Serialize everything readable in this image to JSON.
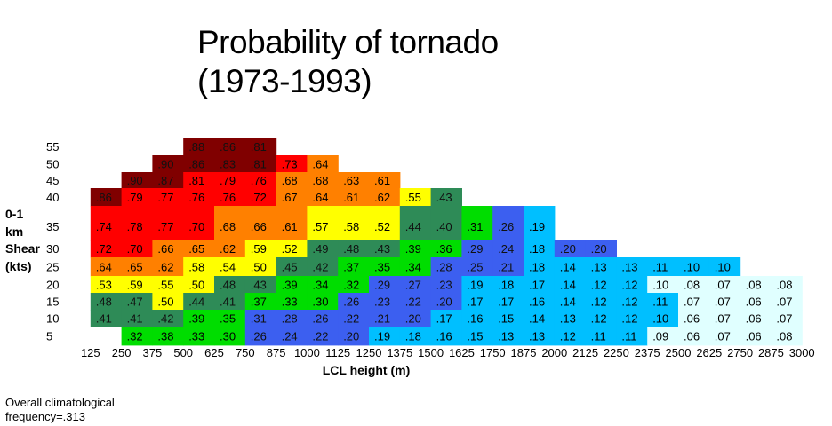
{
  "chart_data": {
    "type": "heatmap",
    "title": [
      "Probability of tornado",
      "(1973-1993)"
    ],
    "xlabel": "LCL height (m)",
    "ylabel": [
      "0-1",
      "km",
      "Shear",
      "(kts)"
    ],
    "x_categories": [
      "125",
      "250",
      "375",
      "500",
      "625",
      "750",
      "875",
      "1000",
      "1125",
      "1250",
      "1375",
      "1500",
      "1625",
      "1750",
      "1875",
      "2000",
      "2125",
      "2250",
      "2375",
      "2500",
      "2625",
      "2750",
      "2875",
      "3000"
    ],
    "y_categories": [
      "55",
      "50",
      "45",
      "40",
      "35",
      "30",
      "25",
      "20",
      "15",
      "10",
      "5"
    ],
    "values": [
      [
        null,
        null,
        null,
        null,
        ".88",
        ".86",
        ".81",
        null,
        null,
        null,
        null,
        null,
        null,
        null,
        null,
        null,
        null,
        null,
        null,
        null,
        null,
        null,
        null,
        null
      ],
      [
        null,
        null,
        null,
        ".90",
        ".86",
        ".83",
        ".81",
        ".73",
        ".64",
        null,
        null,
        null,
        null,
        null,
        null,
        null,
        null,
        null,
        null,
        null,
        null,
        null,
        null,
        null
      ],
      [
        null,
        null,
        ".90",
        ".87",
        ".81",
        ".79",
        ".76",
        ".68",
        ".68",
        ".63",
        ".61",
        null,
        null,
        null,
        null,
        null,
        null,
        null,
        null,
        null,
        null,
        null,
        null,
        null
      ],
      [
        null,
        ".86",
        ".79",
        ".77",
        ".76",
        ".76",
        ".72",
        ".67",
        ".64",
        ".61",
        ".62",
        ".55",
        ".43",
        null,
        null,
        null,
        null,
        null,
        null,
        null,
        null,
        null,
        null,
        null
      ],
      [
        null,
        ".74",
        ".78",
        ".77",
        ".70",
        ".68",
        ".66",
        ".61",
        ".57",
        ".58",
        ".52",
        ".44",
        ".40",
        ".31",
        ".26",
        ".19",
        null,
        null,
        null,
        null,
        null,
        null,
        null,
        null
      ],
      [
        null,
        ".72",
        ".70",
        ".66",
        ".65",
        ".62",
        ".59",
        ".52",
        ".49",
        ".48",
        ".43",
        ".39",
        ".36",
        ".29",
        ".24",
        ".18",
        ".20",
        ".20",
        null,
        null,
        null,
        null,
        null,
        null
      ],
      [
        null,
        ".64",
        ".65",
        ".62",
        ".58",
        ".54",
        ".50",
        ".45",
        ".42",
        ".37",
        ".35",
        ".34",
        ".28",
        ".25",
        ".21",
        ".18",
        ".14",
        ".13",
        ".13",
        ".11",
        ".10",
        ".10",
        null,
        null
      ],
      [
        null,
        ".53",
        ".59",
        ".55",
        ".50",
        ".48",
        ".43",
        ".39",
        ".34",
        ".32",
        ".29",
        ".27",
        ".23",
        ".19",
        ".18",
        ".17",
        ".14",
        ".12",
        ".12",
        ".10",
        ".08",
        ".07",
        ".08",
        ".08"
      ],
      [
        null,
        ".48",
        ".47",
        ".50",
        ".44",
        ".41",
        ".37",
        ".33",
        ".30",
        ".26",
        ".23",
        ".22",
        ".20",
        ".17",
        ".17",
        ".16",
        ".14",
        ".12",
        ".12",
        ".11",
        ".07",
        ".07",
        ".06",
        ".07"
      ],
      [
        null,
        ".41",
        ".41",
        ".42",
        ".39",
        ".35",
        ".31",
        ".28",
        ".26",
        ".22",
        ".21",
        ".20",
        ".17",
        ".16",
        ".15",
        ".14",
        ".13",
        ".12",
        ".12",
        ".10",
        ".06",
        ".07",
        ".06",
        ".07"
      ],
      [
        null,
        null,
        ".32",
        ".38",
        ".33",
        ".30",
        ".26",
        ".24",
        ".22",
        ".20",
        ".19",
        ".18",
        ".16",
        ".15",
        ".13",
        ".13",
        ".12",
        ".11",
        ".11",
        ".09",
        ".06",
        ".07",
        ".06",
        ".08"
      ]
    ],
    "colors": [
      [
        null,
        null,
        null,
        null,
        "#800000",
        "#800000",
        "#800000",
        null,
        null,
        null,
        null,
        null,
        null,
        null,
        null,
        null,
        null,
        null,
        null,
        null,
        null,
        null,
        null,
        null
      ],
      [
        null,
        null,
        null,
        "#800000",
        "#800000",
        "#800000",
        "#800000",
        "#ff0000",
        "#ff8000",
        null,
        null,
        null,
        null,
        null,
        null,
        null,
        null,
        null,
        null,
        null,
        null,
        null,
        null,
        null
      ],
      [
        null,
        null,
        "#800000",
        "#800000",
        "#ff0000",
        "#ff0000",
        "#ff0000",
        "#ff8000",
        "#ff8000",
        "#ff8000",
        "#ff8000",
        null,
        null,
        null,
        null,
        null,
        null,
        null,
        null,
        null,
        null,
        null,
        null,
        null
      ],
      [
        null,
        "#800000",
        "#ff0000",
        "#ff0000",
        "#ff0000",
        "#ff0000",
        "#ff0000",
        "#ff8000",
        "#ff8000",
        "#ff8000",
        "#ff8000",
        "#ffff00",
        "#2e8b57",
        null,
        null,
        null,
        null,
        null,
        null,
        null,
        null,
        null,
        null,
        null
      ],
      [
        null,
        "#ff0000",
        "#ff0000",
        "#ff0000",
        "#ff0000",
        "#ff8000",
        "#ff8000",
        "#ff8000",
        "#ffff00",
        "#ffff00",
        "#ffff00",
        "#2e8b57",
        "#2e8b57",
        "#00dd00",
        "#3c5ff0",
        "#00bfff",
        null,
        null,
        null,
        null,
        null,
        null,
        null,
        null
      ],
      [
        null,
        "#ff0000",
        "#ff0000",
        "#ff8000",
        "#ff8000",
        "#ff8000",
        "#ffff00",
        "#ffff00",
        "#2e8b57",
        "#2e8b57",
        "#2e8b57",
        "#00dd00",
        "#00dd00",
        "#3c5ff0",
        "#3c5ff0",
        "#00bfff",
        "#3c5ff0",
        "#3c5ff0",
        null,
        null,
        null,
        null,
        null,
        null
      ],
      [
        null,
        "#ff8000",
        "#ff8000",
        "#ff8000",
        "#ffff00",
        "#ffff00",
        "#ffff00",
        "#2e8b57",
        "#2e8b57",
        "#00dd00",
        "#00dd00",
        "#00dd00",
        "#3c5ff0",
        "#3c5ff0",
        "#3c5ff0",
        "#00bfff",
        "#00bfff",
        "#00bfff",
        "#00bfff",
        "#00bfff",
        "#00bfff",
        "#00bfff",
        null,
        null
      ],
      [
        null,
        "#ffff00",
        "#ffff00",
        "#ffff00",
        "#ffff00",
        "#2e8b57",
        "#2e8b57",
        "#00dd00",
        "#00dd00",
        "#00dd00",
        "#3c5ff0",
        "#3c5ff0",
        "#3c5ff0",
        "#00bfff",
        "#00bfff",
        "#00bfff",
        "#00bfff",
        "#00bfff",
        "#00bfff",
        "#e0ffff",
        "#e0ffff",
        "#e0ffff",
        "#e0ffff",
        "#e0ffff"
      ],
      [
        null,
        "#2e8b57",
        "#2e8b57",
        "#ffff00",
        "#2e8b57",
        "#2e8b57",
        "#00dd00",
        "#00dd00",
        "#00dd00",
        "#3c5ff0",
        "#3c5ff0",
        "#3c5ff0",
        "#3c5ff0",
        "#00bfff",
        "#00bfff",
        "#00bfff",
        "#00bfff",
        "#00bfff",
        "#00bfff",
        "#00bfff",
        "#e0ffff",
        "#e0ffff",
        "#e0ffff",
        "#e0ffff"
      ],
      [
        null,
        "#2e8b57",
        "#2e8b57",
        "#2e8b57",
        "#00dd00",
        "#00dd00",
        "#3c5ff0",
        "#3c5ff0",
        "#3c5ff0",
        "#3c5ff0",
        "#3c5ff0",
        "#3c5ff0",
        "#00bfff",
        "#00bfff",
        "#00bfff",
        "#00bfff",
        "#00bfff",
        "#00bfff",
        "#00bfff",
        "#00bfff",
        "#e0ffff",
        "#e0ffff",
        "#e0ffff",
        "#e0ffff"
      ],
      [
        null,
        null,
        "#00dd00",
        "#00dd00",
        "#00dd00",
        "#00dd00",
        "#3c5ff0",
        "#3c5ff0",
        "#3c5ff0",
        "#3c5ff0",
        "#00bfff",
        "#00bfff",
        "#00bfff",
        "#00bfff",
        "#00bfff",
        "#00bfff",
        "#00bfff",
        "#00bfff",
        "#00bfff",
        "#e0ffff",
        "#e0ffff",
        "#e0ffff",
        "#e0ffff",
        "#e0ffff"
      ]
    ]
  },
  "footnote": [
    "Overall climatological",
    "frequency=.313"
  ]
}
